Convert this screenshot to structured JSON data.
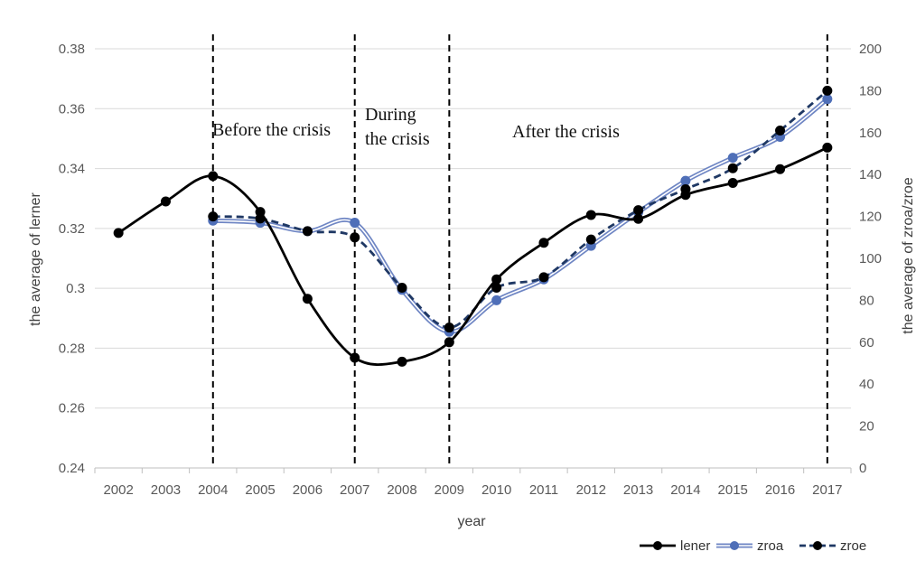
{
  "chart_data": {
    "type": "line",
    "title": "",
    "xlabel": "year",
    "ylabel_left": "the average of lerner",
    "ylabel_right": "the average of zroa/zroe",
    "categories": [
      "2002",
      "2003",
      "2004",
      "2005",
      "2006",
      "2007",
      "2008",
      "2009",
      "2010",
      "2011",
      "2012",
      "2013",
      "2014",
      "2015",
      "2016",
      "2017"
    ],
    "y_left": {
      "min": 0.24,
      "max": 0.38,
      "ticks": [
        0.24,
        0.26,
        0.28,
        0.3,
        0.32,
        0.34,
        0.36,
        0.38
      ],
      "tick_labels": [
        "0.24",
        "0.26",
        "0.28",
        "0.3",
        "0.32",
        "0.34",
        "0.36",
        "0.38"
      ]
    },
    "y_right": {
      "min": 0,
      "max": 200,
      "ticks": [
        0,
        20,
        40,
        60,
        80,
        100,
        120,
        140,
        160,
        180,
        200
      ],
      "tick_labels": [
        "0",
        "20",
        "40",
        "60",
        "80",
        "100",
        "120",
        "140",
        "160",
        "180",
        "200"
      ]
    },
    "series": [
      {
        "name": "lener",
        "axis": "left",
        "color": "#000000",
        "style": "solid",
        "x": [
          "2002",
          "2003",
          "2004",
          "2005",
          "2006",
          "2007",
          "2008",
          "2009",
          "2010",
          "2011",
          "2012",
          "2013",
          "2014",
          "2015",
          "2016",
          "2017"
        ],
        "values": [
          0.3185,
          0.329,
          0.3375,
          0.3255,
          0.2965,
          0.2768,
          0.2755,
          0.282,
          0.303,
          0.3152,
          0.3245,
          0.3232,
          0.3312,
          0.3352,
          0.3398,
          0.347
        ]
      },
      {
        "name": "zroa",
        "axis": "right",
        "color": "#6f86c4",
        "style": "solid-double",
        "x": [
          "2004",
          "2005",
          "2006",
          "2007",
          "2008",
          "2009",
          "2010",
          "2011",
          "2012",
          "2013",
          "2014",
          "2015",
          "2016",
          "2017"
        ],
        "values": [
          118,
          117,
          113,
          117,
          85,
          65,
          80,
          90,
          106,
          122,
          137,
          148,
          158,
          176
        ]
      },
      {
        "name": "zroe",
        "axis": "right",
        "color": "#1f3864",
        "style": "dashed",
        "x": [
          "2004",
          "2005",
          "2006",
          "2007",
          "2008",
          "2009",
          "2010",
          "2011",
          "2012",
          "2013",
          "2014",
          "2015",
          "2016",
          "2017"
        ],
        "values": [
          120,
          119,
          113,
          110,
          86,
          67,
          86,
          91,
          109,
          123,
          133,
          143,
          161,
          180
        ]
      }
    ],
    "period_dividers": [
      "2004",
      "2007",
      "2009",
      "2017"
    ],
    "annotations": [
      "Before the crisis",
      "During\nthe crisis",
      "After the crisis"
    ],
    "grid": "horizontal",
    "legend": {
      "position": "bottom-right",
      "entries": [
        "lener",
        "zroa",
        "zroe"
      ]
    }
  }
}
